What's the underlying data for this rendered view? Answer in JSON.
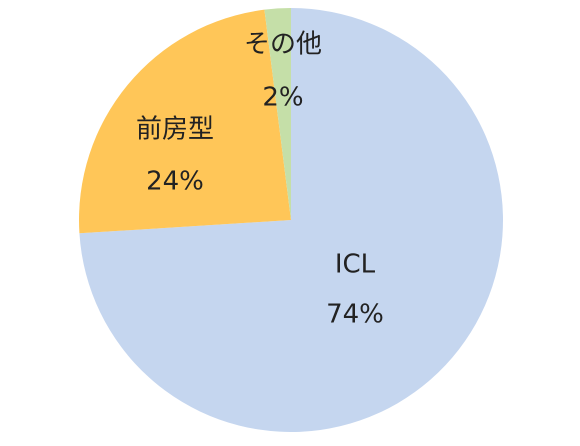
{
  "chart_data": {
    "type": "pie",
    "categories": [
      "ICL",
      "前房型",
      "その他"
    ],
    "values": [
      74,
      24,
      2
    ],
    "value_labels": [
      "74%",
      "24%",
      "2%"
    ],
    "colors": [
      "#c5d6ef",
      "#ffc658",
      "#c5dfa8"
    ]
  }
}
